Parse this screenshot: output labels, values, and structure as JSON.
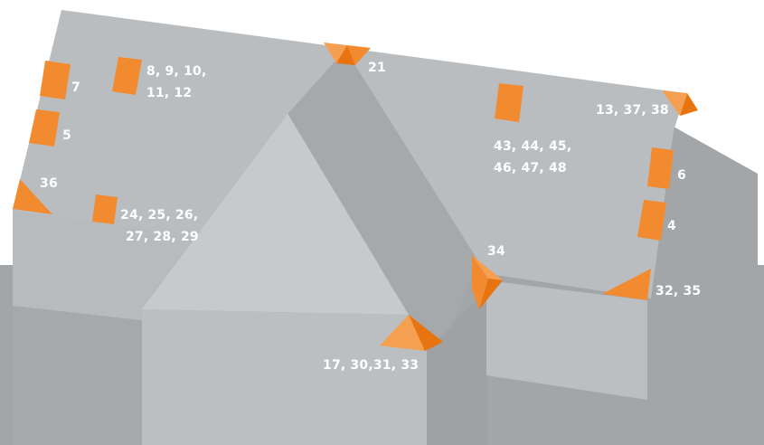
{
  "labels": {
    "l7": "7",
    "l5": "5",
    "l8_line1": "8, 9, 10,",
    "l8_line2": "11, 12",
    "l21": "21",
    "l13": "13, 37, 38",
    "l43_line1": "43, 44, 45,",
    "l43_line2": "46, 47, 48",
    "l6": "6",
    "l4": "4",
    "l36": "36",
    "l24_line1": "24, 25, 26,",
    "l24_line2": "27, 28, 29",
    "l34": "34",
    "l32": "32, 35",
    "l17": "17, 30,31, 33"
  },
  "colors": {
    "ground": "#a3a6a8",
    "roof_light": "#c1c4c6",
    "roof_mid": "#b4b7ba",
    "roof_shade": "#a8abae",
    "wall": "#bdbfc1",
    "gable_light": "#c8cbcd",
    "vent_orange": "#f28a30",
    "vent_dark": "#e8740f",
    "vent_light": "#f5a050",
    "label_text": "#ffffff"
  }
}
